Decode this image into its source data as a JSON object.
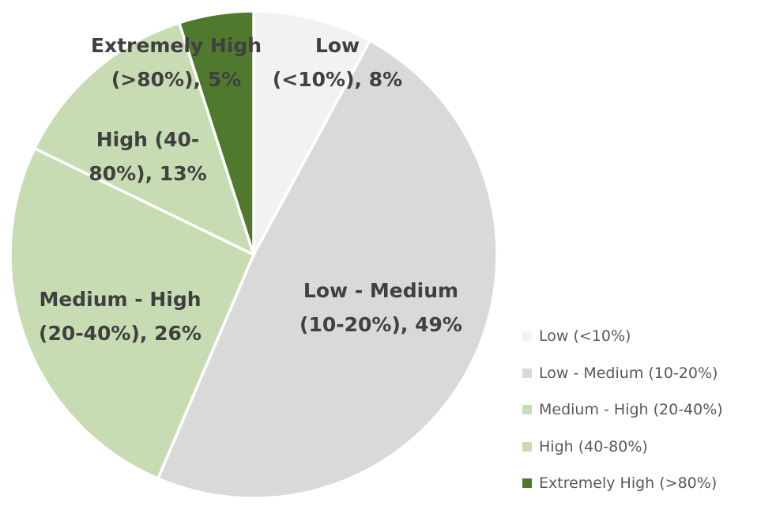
{
  "chart_data": {
    "type": "pie",
    "categories": [
      "Low (<10%)",
      "Low - Medium (10-20%)",
      "Medium - High (20-40%)",
      "High (40-80%)",
      "Extremely High (>80%)"
    ],
    "values": [
      8,
      49,
      26,
      13,
      5
    ],
    "colors": [
      "#f2f2f2",
      "#d9d9d9",
      "#c7dcb2",
      "#c7dcb2",
      "#4f7a2d"
    ],
    "slice_border_color": "#ffffff",
    "label_color": "#404040",
    "legend_text_color": "#595959",
    "start_angle_deg": 0,
    "direction": "clockwise",
    "legend_position": "right",
    "title": "",
    "slice_labels": [
      {
        "line1": "Low",
        "line2": "(<10%), 8%"
      },
      {
        "line1": "Low - Medium",
        "line2": "(10-20%), 49%"
      },
      {
        "line1": "Medium - High",
        "line2": "(20-40%), 26%"
      },
      {
        "line1": "High (40-",
        "line2": "80%), 13%"
      },
      {
        "line1": "Extremely High",
        "line2": "(>80%), 5%"
      }
    ]
  }
}
